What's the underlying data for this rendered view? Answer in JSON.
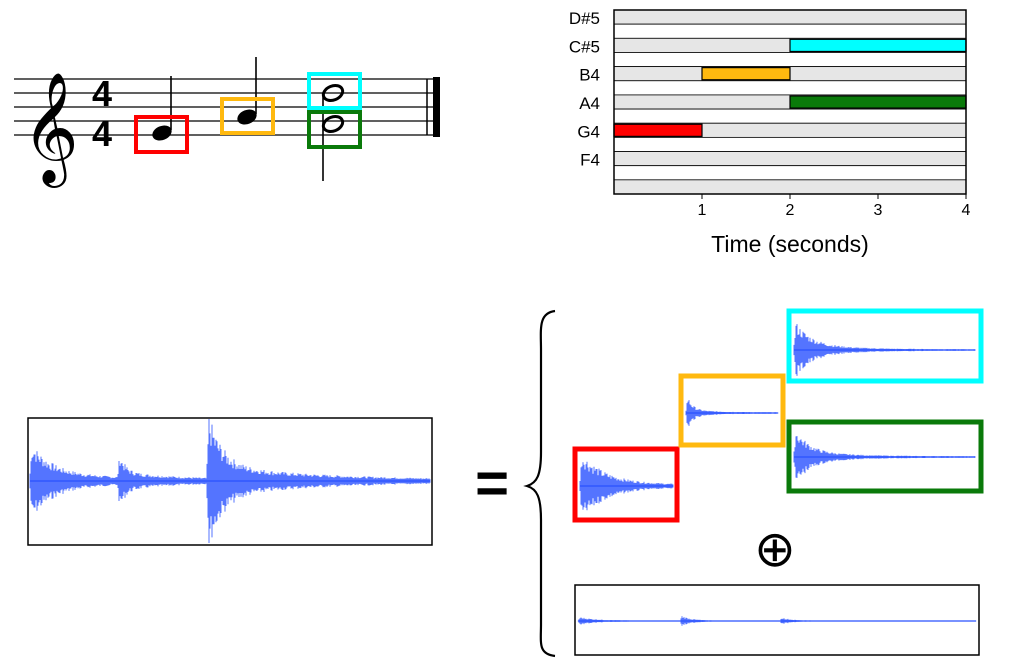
{
  "score": {
    "time_signature_top": "4",
    "time_signature_bottom": "4",
    "treble_clef_glyph": "𝄞"
  },
  "piano_roll": {
    "pitch_labels": [
      "D#5",
      "C#5",
      "B4",
      "A4",
      "G4",
      "F4"
    ],
    "time_ticks": [
      "1",
      "2",
      "3",
      "4"
    ],
    "xlabel": "Time (seconds)"
  },
  "notes": [
    {
      "pitch": "G4",
      "start": 0,
      "end": 1,
      "color": "#ff0000"
    },
    {
      "pitch": "B4",
      "start": 1,
      "end": 2,
      "color": "#ffb90f"
    },
    {
      "pitch": "A4",
      "start": 2,
      "end": 4,
      "color": "#0a7a0a"
    },
    {
      "pitch": "C#5",
      "start": 2,
      "end": 4,
      "color": "#00ffff"
    }
  ],
  "equation": {
    "equals": "=",
    "direct_sum": "⊕"
  },
  "colors": {
    "waveform": "#2a52ff",
    "red": "#ff0000",
    "yellow": "#ffb90f",
    "green": "#0a7a0a",
    "cyan": "#00ffff"
  }
}
